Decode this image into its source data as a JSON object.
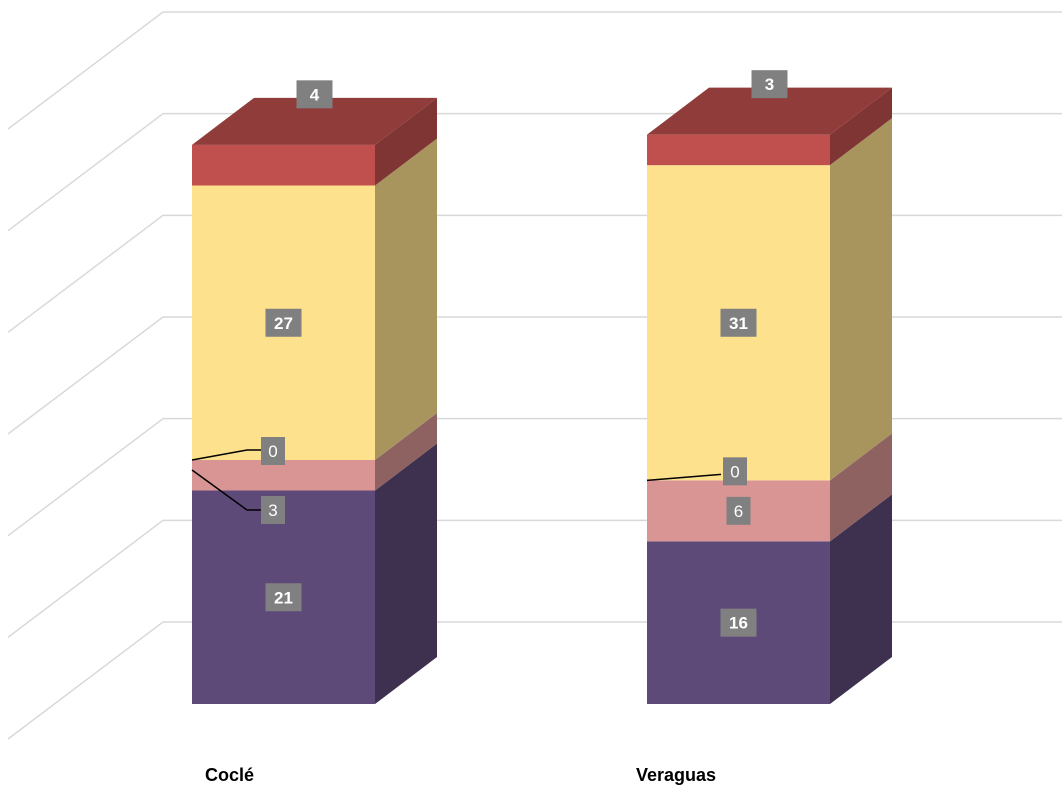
{
  "chart_data": {
    "type": "bar",
    "stacked": true,
    "three_d": true,
    "categories": [
      "Coclé",
      "Veraguas"
    ],
    "series": [
      {
        "values": [
          21,
          16
        ],
        "color": "#5e4a78",
        "label_bold": true
      },
      {
        "values": [
          3,
          6
        ],
        "color": "#d99594",
        "label_bold": false
      },
      {
        "values": [
          0,
          0
        ],
        "color": "#8b6a5a",
        "label_bold": false
      },
      {
        "values": [
          27,
          31
        ],
        "color": "#fde18d",
        "label_bold": true
      },
      {
        "values": [
          4,
          3
        ],
        "color": "#c0504d",
        "label_bold": true
      }
    ],
    "ylim": [
      0,
      60
    ],
    "grid": true,
    "legend": "none",
    "axis_tick_labels": false,
    "data_label_bg": "#808080"
  }
}
